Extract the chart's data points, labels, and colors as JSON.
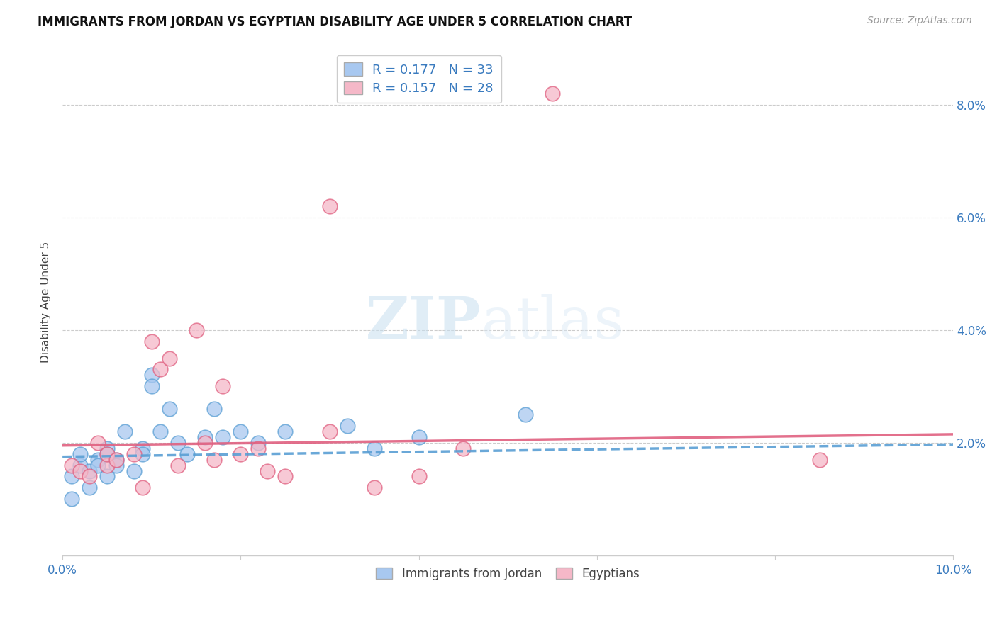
{
  "title": "IMMIGRANTS FROM JORDAN VS EGYPTIAN DISABILITY AGE UNDER 5 CORRELATION CHART",
  "source": "Source: ZipAtlas.com",
  "ylabel": "Disability Age Under 5",
  "xlim": [
    0,
    0.1
  ],
  "ylim": [
    0,
    0.09
  ],
  "x_ticks": [
    0.0,
    0.02,
    0.04,
    0.06,
    0.08,
    0.1
  ],
  "x_tick_labels": [
    "0.0%",
    "",
    "",
    "",
    "",
    "10.0%"
  ],
  "y_ticks": [
    0.0,
    0.02,
    0.04,
    0.06,
    0.08
  ],
  "y_tick_labels_right": [
    "",
    "2.0%",
    "4.0%",
    "6.0%",
    "8.0%"
  ],
  "jordan_color": "#a8c8f0",
  "jordan_color_dark": "#5a9fd4",
  "egypt_color": "#f5b8c8",
  "egypt_color_dark": "#e06080",
  "jordan_R": 0.177,
  "jordan_N": 33,
  "egypt_R": 0.157,
  "egypt_N": 28,
  "jordan_x": [
    0.001,
    0.001,
    0.002,
    0.002,
    0.003,
    0.003,
    0.004,
    0.004,
    0.005,
    0.005,
    0.005,
    0.006,
    0.006,
    0.007,
    0.008,
    0.009,
    0.009,
    0.01,
    0.01,
    0.011,
    0.012,
    0.013,
    0.014,
    0.016,
    0.017,
    0.018,
    0.02,
    0.022,
    0.025,
    0.032,
    0.035,
    0.04,
    0.052
  ],
  "jordan_y": [
    0.014,
    0.01,
    0.016,
    0.018,
    0.015,
    0.012,
    0.017,
    0.016,
    0.019,
    0.018,
    0.014,
    0.017,
    0.016,
    0.022,
    0.015,
    0.019,
    0.018,
    0.032,
    0.03,
    0.022,
    0.026,
    0.02,
    0.018,
    0.021,
    0.026,
    0.021,
    0.022,
    0.02,
    0.022,
    0.023,
    0.019,
    0.021,
    0.025
  ],
  "egypt_x": [
    0.001,
    0.002,
    0.003,
    0.004,
    0.005,
    0.005,
    0.006,
    0.008,
    0.009,
    0.01,
    0.011,
    0.012,
    0.013,
    0.015,
    0.016,
    0.017,
    0.018,
    0.02,
    0.022,
    0.023,
    0.025,
    0.03,
    0.035,
    0.04,
    0.045,
    0.055,
    0.085,
    0.03
  ],
  "egypt_y": [
    0.016,
    0.015,
    0.014,
    0.02,
    0.016,
    0.018,
    0.017,
    0.018,
    0.012,
    0.038,
    0.033,
    0.035,
    0.016,
    0.04,
    0.02,
    0.017,
    0.03,
    0.018,
    0.019,
    0.015,
    0.014,
    0.022,
    0.012,
    0.014,
    0.019,
    0.082,
    0.017,
    0.062
  ],
  "jordan_intercept": 0.0175,
  "jordan_slope": 0.022,
  "egypt_intercept": 0.0195,
  "egypt_slope": 0.02,
  "watermark_line1": "ZIP",
  "watermark_line2": "atlas",
  "background_color": "#ffffff",
  "grid_color": "#cccccc"
}
